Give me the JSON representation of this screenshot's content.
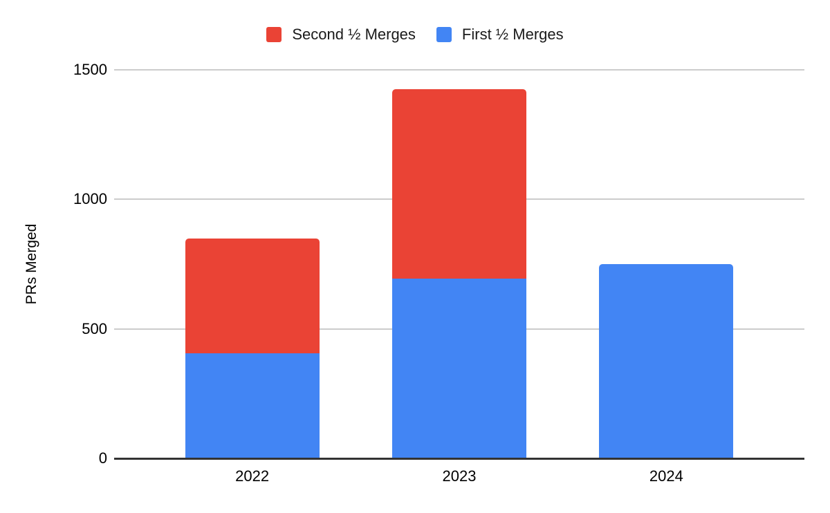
{
  "chart_data": {
    "type": "bar",
    "stacked": true,
    "title": "",
    "xlabel": "",
    "ylabel": "PRs Merged",
    "ylim": [
      0,
      1500
    ],
    "yticks": [
      0,
      500,
      1000,
      1500
    ],
    "grid": true,
    "legend_position": "top",
    "categories": [
      "2022",
      "2023",
      "2024"
    ],
    "series": [
      {
        "name": "Second ½ Merges",
        "color": "#EA4335",
        "values": [
          445,
          730,
          0
        ]
      },
      {
        "name": "First ½ Merges",
        "color": "#4285F4",
        "values": [
          405,
          695,
          750
        ]
      }
    ],
    "style": {
      "background": "#ffffff",
      "gridline_color": "#cccccc",
      "axis_line_color": "#333333",
      "text_color": "#000000"
    }
  }
}
